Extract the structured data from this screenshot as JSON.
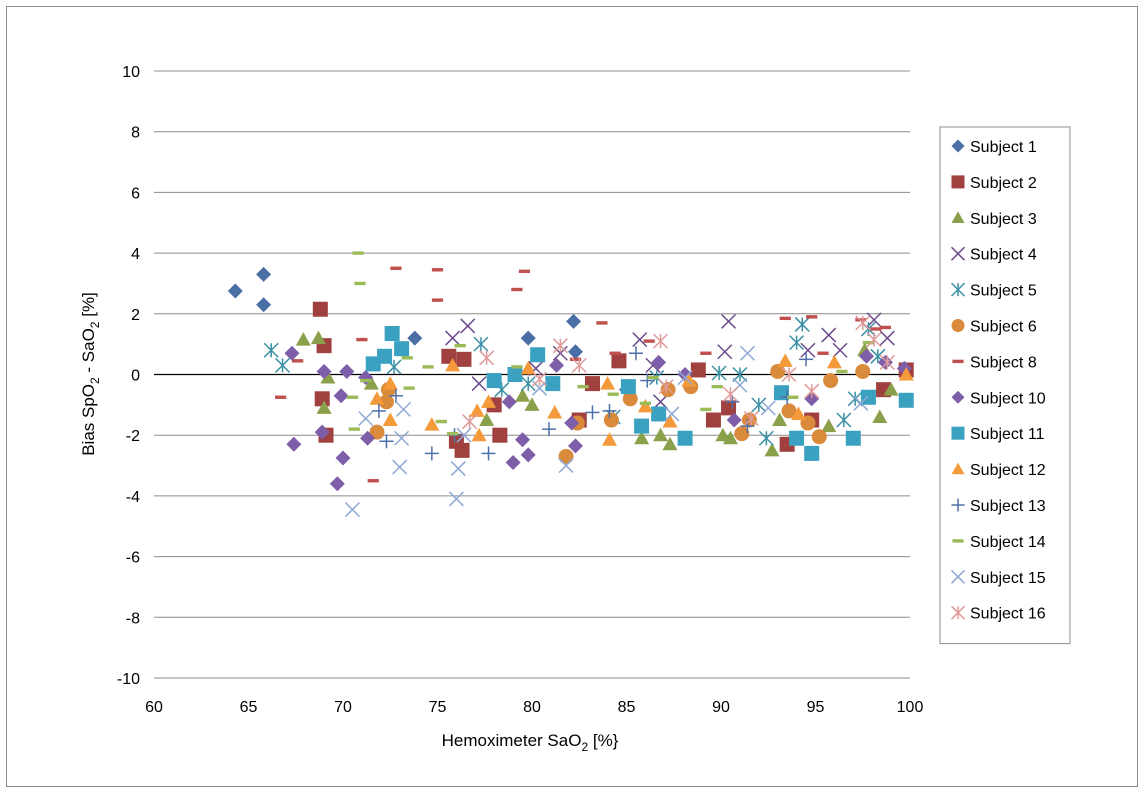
{
  "chart_data": {
    "type": "scatter",
    "title": "",
    "xlabel": "Hemoximeter SaO",
    "xlabel_sub": "2",
    "xlabel_tail": " [%}",
    "ylabel_parts": [
      "Bias SpO",
      "2",
      " - SaO",
      "2",
      " [%]"
    ],
    "xlim": [
      60,
      100
    ],
    "ylim": [
      -10,
      10
    ],
    "xticks": [
      "60",
      "65",
      "70",
      "75",
      "80",
      "85",
      "90",
      "95",
      "100"
    ],
    "yticks": [
      "-10",
      "-8",
      "-6",
      "-4",
      "-2",
      "0",
      "2",
      "4",
      "6",
      "8",
      "10"
    ],
    "grid": "horizontal",
    "legend_position": "right",
    "series": [
      {
        "name": "Subject 1",
        "color": "#4a6fa5",
        "marker": "diamond",
        "x": [
          64.3,
          65.8,
          65.8,
          73.8,
          79.8,
          82.2,
          82.3,
          85.0
        ],
        "y": [
          2.75,
          3.3,
          2.3,
          1.2,
          1.2,
          1.75,
          0.75,
          -0.5
        ]
      },
      {
        "name": "Subject 2",
        "color": "#a0413f",
        "marker": "square",
        "x": [
          68.8,
          69.0,
          68.9,
          69.1,
          75.6,
          76.0,
          76.4,
          76.3,
          78.0,
          78.3,
          82.5,
          83.2,
          84.6,
          88.8,
          89.6,
          90.4,
          93.5,
          94.8,
          98.6,
          99.8
        ],
        "y": [
          2.15,
          0.95,
          -0.8,
          -2.0,
          0.6,
          -2.2,
          0.5,
          -2.5,
          -1.0,
          -2.0,
          -1.5,
          -0.3,
          0.45,
          0.15,
          -1.5,
          -1.1,
          -2.3,
          -1.5,
          -0.5,
          0.15
        ]
      },
      {
        "name": "Subject 3",
        "color": "#8aa04a",
        "marker": "triangle",
        "x": [
          67.9,
          68.7,
          69.0,
          69.2,
          71.5,
          77.6,
          79.5,
          80.0,
          85.8,
          86.8,
          87.3,
          90.1,
          90.5,
          92.7,
          93.1,
          95.7,
          97.6,
          98.4,
          99.0
        ],
        "y": [
          1.15,
          1.2,
          -1.1,
          -0.1,
          -0.3,
          -1.5,
          -0.7,
          -1.0,
          -2.1,
          -2.0,
          -2.3,
          -2.0,
          -2.1,
          -2.5,
          -1.5,
          -1.7,
          0.8,
          -1.4,
          -0.5
        ]
      },
      {
        "name": "Subject 4",
        "color": "#6b4a8c",
        "marker": "x",
        "x": [
          75.8,
          76.6,
          77.2,
          80.2,
          81.5,
          85.7,
          86.4,
          86.8,
          90.4,
          90.2,
          94.6,
          95.7,
          96.3,
          98.1,
          98.8
        ],
        "y": [
          1.2,
          1.6,
          -0.3,
          0.2,
          0.7,
          1.15,
          0.3,
          -0.9,
          1.75,
          0.75,
          0.8,
          1.3,
          0.8,
          1.8,
          1.2
        ]
      },
      {
        "name": "Subject 5",
        "color": "#3a8fa5",
        "marker": "asterisk",
        "x": [
          66.2,
          66.8,
          72.7,
          77.3,
          78.4,
          79.8,
          84.3,
          86.6,
          89.9,
          91.0,
          92.0,
          92.4,
          94.0,
          94.3,
          96.5,
          97.1,
          97.8,
          98.3
        ],
        "y": [
          0.8,
          0.3,
          0.25,
          1.0,
          -0.5,
          -0.3,
          -1.4,
          -0.1,
          0.05,
          0.0,
          -1.0,
          -2.1,
          1.05,
          1.65,
          -1.5,
          -0.8,
          1.5,
          0.6
        ]
      },
      {
        "name": "Subject 6",
        "color": "#d98a3a",
        "marker": "circle",
        "x": [
          71.8,
          72.3,
          72.4,
          81.8,
          82.4,
          84.2,
          85.2,
          87.2,
          88.4,
          91.1,
          91.5,
          93.0,
          93.6,
          94.6,
          95.2,
          95.8,
          97.5
        ],
        "y": [
          -1.9,
          -0.9,
          -0.5,
          -2.7,
          -1.6,
          -1.5,
          -0.8,
          -0.5,
          -0.4,
          -1.95,
          -1.5,
          0.1,
          -1.2,
          -1.6,
          -2.05,
          -0.2,
          0.1
        ]
      },
      {
        "name": "Subject 8",
        "color": "#c0504d",
        "marker": "dash",
        "x": [
          66.7,
          67.6,
          71.0,
          71.6,
          72.8,
          75.0,
          75.0,
          79.2,
          79.6,
          82.3,
          83.7,
          84.4,
          86.2,
          89.2,
          93.4,
          94.8,
          95.4,
          97.4,
          98.2,
          98.7
        ],
        "y": [
          -0.75,
          0.45,
          1.15,
          -3.5,
          3.5,
          3.45,
          2.45,
          2.8,
          3.4,
          0.5,
          1.7,
          0.7,
          1.1,
          0.7,
          1.85,
          1.9,
          0.7,
          1.8,
          1.5,
          1.55
        ]
      },
      {
        "name": "Subject 10",
        "color": "#7e5ea8",
        "marker": "diamond",
        "x": [
          67.3,
          67.4,
          68.9,
          69.0,
          69.7,
          69.9,
          70.0,
          70.2,
          71.2,
          71.3,
          78.8,
          79.0,
          79.5,
          79.8,
          81.3,
          82.1,
          82.3,
          86.7,
          88.1,
          90.7,
          94.8,
          97.7,
          98.7,
          99.7
        ],
        "y": [
          0.7,
          -2.3,
          -1.9,
          0.1,
          -3.6,
          -0.7,
          -2.75,
          0.1,
          -0.1,
          -2.1,
          -0.9,
          -2.9,
          -2.15,
          -2.65,
          0.3,
          -1.6,
          -2.35,
          0.4,
          0.0,
          -1.5,
          -0.8,
          0.6,
          0.4,
          0.2
        ]
      },
      {
        "name": "Subject 11",
        "color": "#3aa1c0",
        "marker": "square",
        "x": [
          71.6,
          72.2,
          72.6,
          73.1,
          78.0,
          79.1,
          80.3,
          81.1,
          85.1,
          85.8,
          86.7,
          88.1,
          93.2,
          94.0,
          94.8,
          97.0,
          97.8,
          99.8
        ],
        "y": [
          0.35,
          0.6,
          1.35,
          0.85,
          -0.2,
          0.0,
          0.65,
          -0.3,
          -0.4,
          -1.7,
          -1.3,
          -2.1,
          -0.6,
          -2.1,
          -2.6,
          -2.1,
          -0.75,
          -0.85
        ]
      },
      {
        "name": "Subject 12",
        "color": "#f59a3a",
        "marker": "triangle",
        "x": [
          71.8,
          72.5,
          72.5,
          74.7,
          75.8,
          77.1,
          77.2,
          77.7,
          79.8,
          81.2,
          84.1,
          84.0,
          86.0,
          87.3,
          88.3,
          93.4,
          94.1,
          96.0,
          99.8
        ],
        "y": [
          -0.8,
          -0.3,
          -1.5,
          -1.65,
          0.3,
          -1.2,
          -2.0,
          -0.9,
          0.2,
          -1.25,
          -2.15,
          -0.3,
          -1.05,
          -1.55,
          -0.2,
          0.45,
          -1.3,
          0.4,
          0.0
        ]
      },
      {
        "name": "Subject 13",
        "color": "#4f6fa8",
        "marker": "plus",
        "x": [
          71.9,
          72.3,
          72.8,
          74.7,
          75.9,
          77.7,
          80.9,
          83.2,
          84.1,
          85.5,
          86.1,
          90.6,
          91.4,
          93.5,
          94.5
        ],
        "y": [
          -1.2,
          -2.2,
          -0.7,
          -2.6,
          -2.0,
          -2.6,
          -1.8,
          -1.25,
          -1.2,
          0.7,
          -0.2,
          -0.9,
          -1.7,
          -0.75,
          0.5
        ]
      },
      {
        "name": "Subject 14",
        "color": "#9bbb59",
        "marker": "dash",
        "x": [
          70.5,
          70.6,
          70.8,
          70.9,
          71.2,
          73.4,
          73.5,
          74.5,
          75.2,
          75.8,
          76.2,
          79.2,
          82.7,
          84.3,
          86.0,
          86.4,
          89.2,
          89.8,
          93.8,
          96.4,
          97.8
        ],
        "y": [
          -0.75,
          -1.8,
          4.0,
          3.0,
          -0.2,
          0.55,
          -0.45,
          0.25,
          -1.55,
          -1.95,
          0.95,
          0.25,
          -0.4,
          -0.65,
          -0.95,
          -0.1,
          -1.15,
          -0.4,
          -0.75,
          0.1,
          1.05
        ]
      },
      {
        "name": "Subject 15",
        "color": "#8fa8d4",
        "marker": "x",
        "x": [
          70.5,
          71.2,
          73.0,
          73.1,
          73.2,
          76.0,
          76.1,
          76.4,
          80.4,
          81.8,
          87.4,
          88.1,
          91.0,
          91.4,
          92.5,
          97.4
        ],
        "y": [
          -4.45,
          -1.45,
          -3.05,
          -2.1,
          -1.15,
          -4.1,
          -3.1,
          -2.0,
          -0.45,
          -3.0,
          -1.3,
          -0.1,
          -0.35,
          0.7,
          -1.1,
          -0.95
        ]
      },
      {
        "name": "Subject 16",
        "color": "#e09a9a",
        "marker": "asterisk",
        "x": [
          76.7,
          77.6,
          80.4,
          81.5,
          82.5,
          86.8,
          87.1,
          90.5,
          91.6,
          93.6,
          94.8,
          97.5,
          98.1,
          98.8
        ],
        "y": [
          -1.55,
          0.55,
          -0.15,
          0.95,
          0.3,
          1.1,
          -0.4,
          -0.65,
          -1.45,
          0.0,
          -0.55,
          1.7,
          1.15,
          0.4
        ]
      }
    ]
  }
}
